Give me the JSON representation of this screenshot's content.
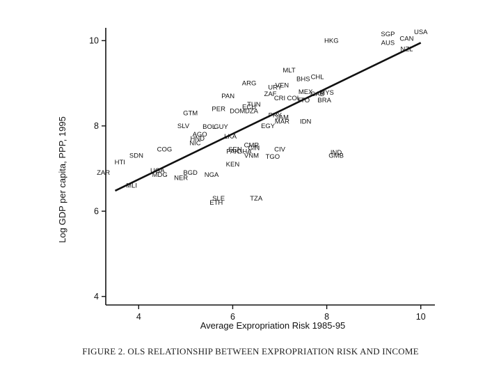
{
  "caption": "FIGURE 2. OLS RELATIONSHIP BETWEEN EXPROPRIATION RISK AND INCOME",
  "chart_data": {
    "type": "scatter",
    "xlabel": "Average Expropriation Risk 1985-95",
    "ylabel": "Log GDP per capita, PPP, 1995",
    "xlim": [
      3.3,
      10.3
    ],
    "ylim": [
      3.8,
      10.3
    ],
    "xticks": [
      "4",
      "6",
      "8",
      "10"
    ],
    "yticks": [
      "4",
      "6",
      "8",
      "10"
    ],
    "grid": false,
    "fit_line": {
      "x": [
        3.5,
        10.0
      ],
      "y": [
        6.48,
        9.95
      ]
    },
    "points": [
      {
        "label": "USA",
        "x": 10.0,
        "y": 10.2
      },
      {
        "label": "SGP",
        "x": 9.3,
        "y": 10.15
      },
      {
        "label": "CAN",
        "x": 9.7,
        "y": 10.05
      },
      {
        "label": "AUS",
        "x": 9.3,
        "y": 9.95
      },
      {
        "label": "NZL",
        "x": 9.7,
        "y": 9.8
      },
      {
        "label": "HKG",
        "x": 8.1,
        "y": 10.0
      },
      {
        "label": "MLT",
        "x": 7.2,
        "y": 9.3
      },
      {
        "label": "CHL",
        "x": 7.8,
        "y": 9.15
      },
      {
        "label": "BHS",
        "x": 7.5,
        "y": 9.1
      },
      {
        "label": "ARG",
        "x": 6.35,
        "y": 9.0
      },
      {
        "label": "VEN",
        "x": 7.05,
        "y": 8.95
      },
      {
        "label": "URY",
        "x": 6.9,
        "y": 8.9
      },
      {
        "label": "MEX",
        "x": 7.55,
        "y": 8.8
      },
      {
        "label": "GAB",
        "x": 7.8,
        "y": 8.75
      },
      {
        "label": "MYS",
        "x": 8.0,
        "y": 8.78
      },
      {
        "label": "ZAF",
        "x": 6.8,
        "y": 8.75
      },
      {
        "label": "PAN",
        "x": 5.9,
        "y": 8.7
      },
      {
        "label": "CRI",
        "x": 7.0,
        "y": 8.65
      },
      {
        "label": "COL",
        "x": 7.3,
        "y": 8.65
      },
      {
        "label": "TTO",
        "x": 7.5,
        "y": 8.6
      },
      {
        "label": "BRA",
        "x": 7.95,
        "y": 8.6
      },
      {
        "label": "TUN",
        "x": 6.45,
        "y": 8.5
      },
      {
        "label": "ECU",
        "x": 6.35,
        "y": 8.45
      },
      {
        "label": "PER",
        "x": 5.7,
        "y": 8.4
      },
      {
        "label": "DOM",
        "x": 6.1,
        "y": 8.35
      },
      {
        "label": "DZA",
        "x": 6.4,
        "y": 8.35
      },
      {
        "label": "GTM",
        "x": 5.1,
        "y": 8.3
      },
      {
        "label": "PRY",
        "x": 6.9,
        "y": 8.25
      },
      {
        "label": "JAM",
        "x": 7.05,
        "y": 8.2
      },
      {
        "label": "MAR",
        "x": 7.05,
        "y": 8.1
      },
      {
        "label": "IDN",
        "x": 7.55,
        "y": 8.1
      },
      {
        "label": "EGY",
        "x": 6.75,
        "y": 8.0
      },
      {
        "label": "SLV",
        "x": 4.95,
        "y": 8.0
      },
      {
        "label": "BOL",
        "x": 5.5,
        "y": 7.98
      },
      {
        "label": "GUY",
        "x": 5.75,
        "y": 7.98
      },
      {
        "label": "LKA",
        "x": 5.95,
        "y": 7.75
      },
      {
        "label": "AGO",
        "x": 5.3,
        "y": 7.8
      },
      {
        "label": "HND",
        "x": 5.25,
        "y": 7.7
      },
      {
        "label": "NIC",
        "x": 5.2,
        "y": 7.6
      },
      {
        "label": "COG",
        "x": 4.55,
        "y": 7.45
      },
      {
        "label": "SEN",
        "x": 6.05,
        "y": 7.45
      },
      {
        "label": "CMR",
        "x": 6.4,
        "y": 7.55
      },
      {
        "label": "GIN",
        "x": 6.45,
        "y": 7.48
      },
      {
        "label": "PAK",
        "x": 6.0,
        "y": 7.4
      },
      {
        "label": "GHA",
        "x": 6.25,
        "y": 7.4
      },
      {
        "label": "CIV",
        "x": 7.0,
        "y": 7.45
      },
      {
        "label": "VNM",
        "x": 6.4,
        "y": 7.3
      },
      {
        "label": "TGO",
        "x": 6.85,
        "y": 7.28
      },
      {
        "label": "IND",
        "x": 8.2,
        "y": 7.38
      },
      {
        "label": "GMB",
        "x": 8.2,
        "y": 7.3
      },
      {
        "label": "SDN",
        "x": 3.95,
        "y": 7.3
      },
      {
        "label": "HTI",
        "x": 3.6,
        "y": 7.15
      },
      {
        "label": "KEN",
        "x": 6.0,
        "y": 7.1
      },
      {
        "label": "UGA",
        "x": 4.4,
        "y": 6.95
      },
      {
        "label": "MDG",
        "x": 4.45,
        "y": 6.85
      },
      {
        "label": "BGD",
        "x": 5.1,
        "y": 6.9
      },
      {
        "label": "NGA",
        "x": 5.55,
        "y": 6.85
      },
      {
        "label": "NER",
        "x": 4.9,
        "y": 6.78
      },
      {
        "label": "ZAR",
        "x": 3.25,
        "y": 6.9
      },
      {
        "label": "MLI",
        "x": 3.85,
        "y": 6.6
      },
      {
        "label": "SLE",
        "x": 5.7,
        "y": 6.3
      },
      {
        "label": "TZA",
        "x": 6.5,
        "y": 6.3
      },
      {
        "label": "ETH",
        "x": 5.65,
        "y": 6.2
      }
    ]
  }
}
